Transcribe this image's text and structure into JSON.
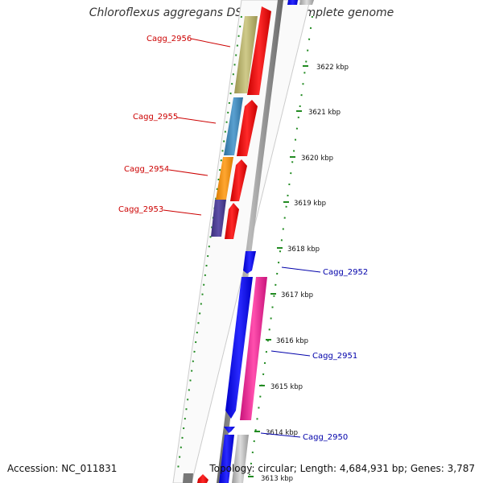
{
  "title": "Chloroflexus aggregans DSM 9485, complete genome",
  "footer": {
    "accession": "Accession: NC_011831",
    "summary": "Topology: circular; Length: 4,684,931 bp; Genes: 3,787"
  },
  "ticks": [
    "3622 kbp",
    "3621 kbp",
    "3620 kbp",
    "3619 kbp",
    "3618 kbp",
    "3617 kbp",
    "3616 kbp",
    "3615 kbp",
    "3614 kbp",
    "3613 kbp"
  ],
  "genes": [
    {
      "label": "Cagg_2956",
      "side": "left",
      "color": "#cc0000"
    },
    {
      "label": "Cagg_2955",
      "side": "left",
      "color": "#cc0000"
    },
    {
      "label": "Cagg_2954",
      "side": "left",
      "color": "#cc0000"
    },
    {
      "label": "Cagg_2953",
      "side": "left",
      "color": "#cc0000"
    },
    {
      "label": "Cagg_2952",
      "side": "right",
      "color": "#0000aa"
    },
    {
      "label": "Cagg_2951",
      "side": "right",
      "color": "#0000aa"
    },
    {
      "label": "Cagg_2950",
      "side": "right",
      "color": "#0000aa"
    }
  ],
  "colors": {
    "forward_strand": "#ff0000",
    "reverse_strand": "#0000ff",
    "backbone": "#888888",
    "tick_dots": "#228b22",
    "gc_band": "#cccccc"
  }
}
